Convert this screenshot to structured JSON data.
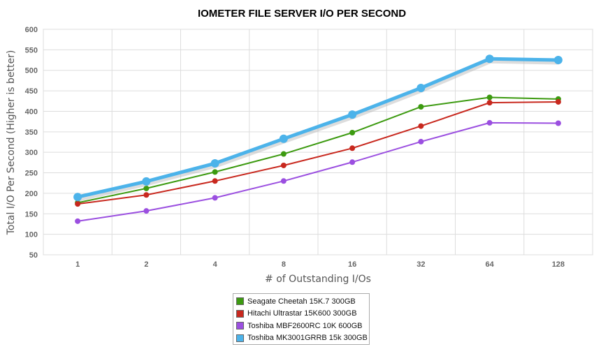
{
  "chart_data": {
    "type": "line",
    "title": "IOMETER FILE SERVER I/O PER SECOND",
    "xlabel": "# of Outstanding I/Os",
    "ylabel": "Total I/O Per Second (Higher is better)",
    "categories": [
      "1",
      "2",
      "4",
      "8",
      "16",
      "32",
      "64",
      "128"
    ],
    "ylim": [
      50,
      600
    ],
    "yticks": [
      50,
      100,
      150,
      200,
      250,
      300,
      350,
      400,
      450,
      500,
      550,
      600
    ],
    "grid": true,
    "legend_position": "bottom",
    "series": [
      {
        "name": "Seagate Cheetah 15K.7 300GB",
        "color": "#3c9a10",
        "values": [
          177,
          212,
          252,
          296,
          348,
          411,
          434,
          430
        ]
      },
      {
        "name": "Hitachi Ultrastar 15K600 300GB",
        "color": "#c8281e",
        "values": [
          174,
          196,
          230,
          268,
          310,
          364,
          421,
          423
        ]
      },
      {
        "name": "Toshiba MBF2600RC 10K 600GB",
        "color": "#9b4fe0",
        "values": [
          132,
          157,
          189,
          230,
          276,
          326,
          372,
          371
        ]
      },
      {
        "name": "Toshiba MK3001GRRB 15k 300GB",
        "color": "#4cb3ea",
        "values": [
          191,
          229,
          273,
          333,
          392,
          457,
          528,
          525
        ]
      }
    ]
  }
}
